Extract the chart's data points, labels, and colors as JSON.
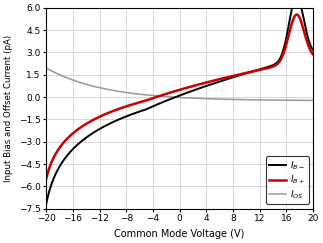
{
  "xlabel": "Common Mode Voltage (V)",
  "ylabel": "Input Bias and Offset Current (pA)",
  "xlim": [
    -20,
    20
  ],
  "ylim": [
    -7.5,
    6
  ],
  "xticks": [
    -20,
    -16,
    -12,
    -8,
    -4,
    0,
    4,
    8,
    12,
    16,
    20
  ],
  "yticks": [
    -7.5,
    -6,
    -4.5,
    -3,
    -1.5,
    0,
    1.5,
    3,
    4.5,
    6
  ],
  "colors": [
    "#000000",
    "#cc0000",
    "#999999"
  ],
  "lwidths": [
    1.4,
    1.8,
    1.1
  ],
  "background": "#ffffff",
  "grid_color": "#c8c8c8",
  "legend_labels": [
    "$I_{B-}$",
    "$I_{B+}$",
    "$I_{OS}$"
  ],
  "figsize": [
    3.23,
    2.43
  ],
  "dpi": 100
}
